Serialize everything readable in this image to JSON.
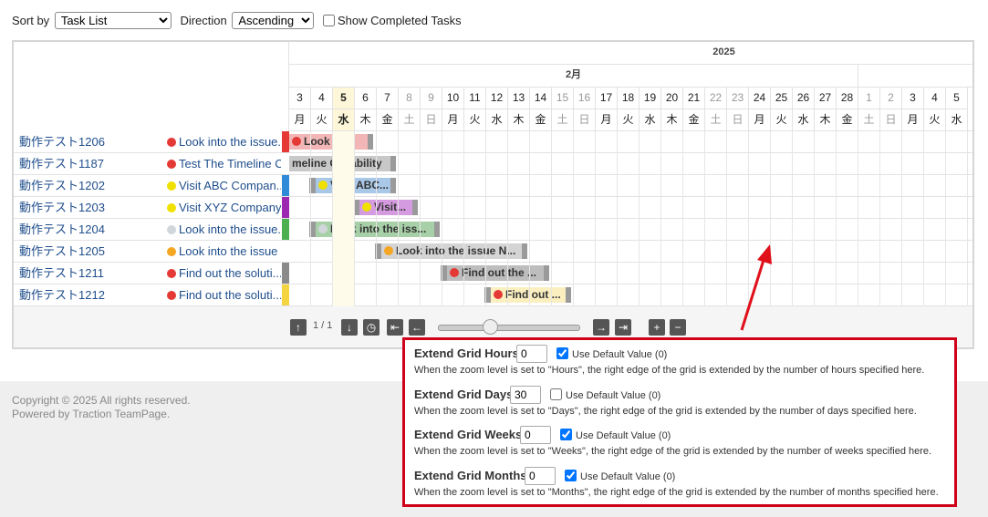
{
  "toolbar": {
    "sort_label": "Sort by",
    "sort_value": "Task List",
    "direction_label": "Direction",
    "direction_value": "Ascending",
    "show_completed": "Show Completed Tasks"
  },
  "timeline": {
    "year": "2025",
    "month": "2月",
    "days": [
      3,
      4,
      5,
      6,
      7,
      8,
      9,
      10,
      11,
      12,
      13,
      14,
      15,
      16,
      17,
      18,
      19,
      20,
      21,
      22,
      23,
      24,
      25,
      26,
      27,
      28,
      1,
      2,
      3,
      4,
      5
    ],
    "weekdays": [
      "月",
      "火",
      "水",
      "木",
      "金",
      "土",
      "日",
      "月",
      "火",
      "水",
      "木",
      "金",
      "土",
      "日",
      "月",
      "火",
      "水",
      "木",
      "金",
      "土",
      "日",
      "月",
      "火",
      "水",
      "木",
      "金",
      "土",
      "日",
      "月",
      "火",
      "水"
    ]
  },
  "tasks": [
    {
      "name": "動作テスト1206",
      "title": "Look into the issue...",
      "bar_label": "Look int..."
    },
    {
      "name": "動作テスト1187",
      "title": "Test The Timeline C...",
      "bar_label": "meline Capability"
    },
    {
      "name": "動作テスト1202",
      "title": "Visit ABC Compan...",
      "bar_label": "Visit ABC..."
    },
    {
      "name": "動作テスト1203",
      "title": "Visit XYZ Company...",
      "bar_label": "Visit..."
    },
    {
      "name": "動作テスト1204",
      "title": "Look into the issue...",
      "bar_label": "Look into the iss..."
    },
    {
      "name": "動作テスト1205",
      "title": "Look into the issue ...",
      "bar_label": "Look into the issue N..."
    },
    {
      "name": "動作テスト1211",
      "title": "Find out the soluti...",
      "bar_label": "Find out the ..."
    },
    {
      "name": "動作テスト1212",
      "title": "Find out the soluti...",
      "bar_label": "Find out ..."
    }
  ],
  "pagination": "1 / 1",
  "settings": [
    {
      "label": "Extend Grid Hours",
      "value": "0",
      "checkbox_label": "Use Default Value (0)",
      "checked": true,
      "description": "When the zoom level is set to \"Hours\", the right edge of the grid is extended by the number of hours specified here."
    },
    {
      "label": "Extend Grid Days",
      "value": "30",
      "checkbox_label": "Use Default Value (0)",
      "checked": false,
      "description": "When the zoom level is set to \"Days\", the right edge of the grid is extended by the number of days specified here."
    },
    {
      "label": "Extend Grid Weeks",
      "value": "0",
      "checkbox_label": "Use Default Value (0)",
      "checked": true,
      "description": "When the zoom level is set to \"Weeks\", the right edge of the grid is extended by the number of weeks specified here."
    },
    {
      "label": "Extend Grid Months",
      "value": "0",
      "checkbox_label": "Use Default Value (0)",
      "checked": true,
      "description": "When the zoom level is set to \"Months\", the right edge of the grid is extended by the number of months specified here."
    }
  ],
  "footer": {
    "copyright": "Copyright © 2025 All rights reserved.",
    "powered": "Powered by Traction TeamPage."
  }
}
